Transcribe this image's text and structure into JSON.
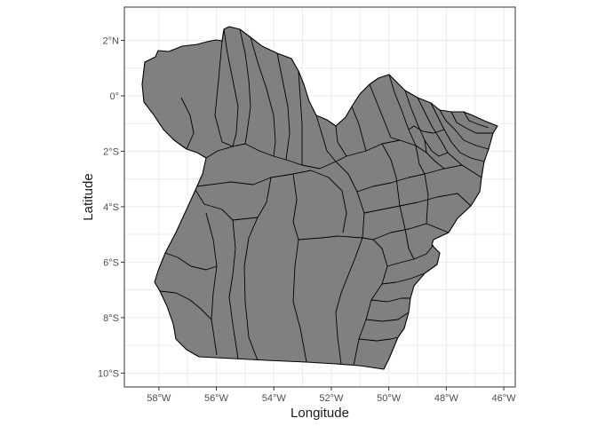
{
  "map": {
    "type": "choropleth-outline",
    "region_fill": "#808080",
    "border_color": "#000000",
    "background": "#ffffff",
    "grid": true,
    "xlabel": "Longitude",
    "ylabel": "Latitude",
    "xlim": [
      -59.2,
      -45.6
    ],
    "ylim": [
      -10.5,
      3.2
    ],
    "x_ticks": [
      {
        "value": -58,
        "label": "58°W"
      },
      {
        "value": -56,
        "label": "56°W"
      },
      {
        "value": -54,
        "label": "54°W"
      },
      {
        "value": -52,
        "label": "52°W"
      },
      {
        "value": -50,
        "label": "50°W"
      },
      {
        "value": -48,
        "label": "48°W"
      },
      {
        "value": -46,
        "label": "46°W"
      }
    ],
    "y_ticks": [
      {
        "value": 2,
        "label": "2°N"
      },
      {
        "value": 0,
        "label": "0°"
      },
      {
        "value": -2,
        "label": "2°S"
      },
      {
        "value": -4,
        "label": "4°S"
      },
      {
        "value": -6,
        "label": "6°S"
      },
      {
        "value": -8,
        "label": "8°S"
      },
      {
        "value": -10,
        "label": "10°S"
      }
    ]
  }
}
